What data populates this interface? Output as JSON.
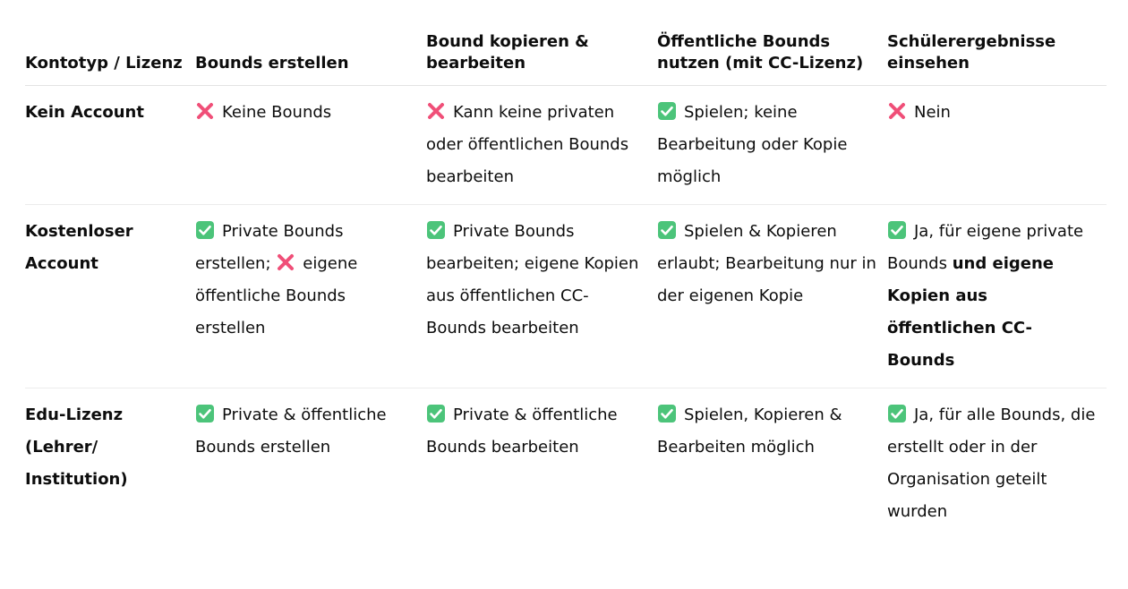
{
  "colors": {
    "check": "#4cc47a",
    "cross": "#f04f78",
    "text": "#0d0d0d"
  },
  "headers": [
    "Kontotyp / Lizenz",
    "Bounds erstellen",
    "Bound kopieren & bearbeiten",
    "Öffentliche Bounds nutzen (mit CC-Lizenz)",
    "Schülerergebnisse einsehen"
  ],
  "rows": [
    {
      "label": "Kein Account",
      "cells": [
        [
          {
            "icon": "cross-icon"
          },
          {
            "text": "Keine Bounds"
          }
        ],
        [
          {
            "icon": "cross-icon"
          },
          {
            "text": "Kann keine privaten oder öffentlichen Bounds bearbeiten"
          }
        ],
        [
          {
            "icon": "check-icon"
          },
          {
            "text": "Spielen; keine Bearbeitung oder Kopie möglich"
          }
        ],
        [
          {
            "icon": "cross-icon"
          },
          {
            "text": "Nein"
          }
        ]
      ]
    },
    {
      "label": "Kostenloser Account",
      "cells": [
        [
          {
            "icon": "check-icon"
          },
          {
            "text": "Private Bounds erstellen; "
          },
          {
            "icon": "cross-icon"
          },
          {
            "text": "eigene öffentliche Bounds erstellen"
          }
        ],
        [
          {
            "icon": "check-icon"
          },
          {
            "text": "Private Bounds bearbeiten; eigene Kopien aus öffentlichen CC-Bounds bearbeiten"
          }
        ],
        [
          {
            "icon": "check-icon"
          },
          {
            "text": "Spielen & Kopieren erlaubt; Bearbeitung nur in der eigenen Kopie"
          }
        ],
        [
          {
            "icon": "check-icon"
          },
          {
            "text": "Ja, für eigene private Bounds "
          },
          {
            "text": "und eigene Kopien aus öffentlichen CC-Bounds",
            "bold": true
          }
        ]
      ]
    },
    {
      "label": "Edu-Lizenz (Lehrer/ Institution)",
      "cells": [
        [
          {
            "icon": "check-icon"
          },
          {
            "text": "Private & öffentliche Bounds erstellen"
          }
        ],
        [
          {
            "icon": "check-icon"
          },
          {
            "text": "Private & öffentliche Bounds bearbeiten"
          }
        ],
        [
          {
            "icon": "check-icon"
          },
          {
            "text": "Spielen, Kopieren & Bearbeiten möglich"
          }
        ],
        [
          {
            "icon": "check-icon"
          },
          {
            "text": "Ja, für alle Bounds, die erstellt oder in der Organisation geteilt wurden"
          }
        ]
      ]
    }
  ]
}
